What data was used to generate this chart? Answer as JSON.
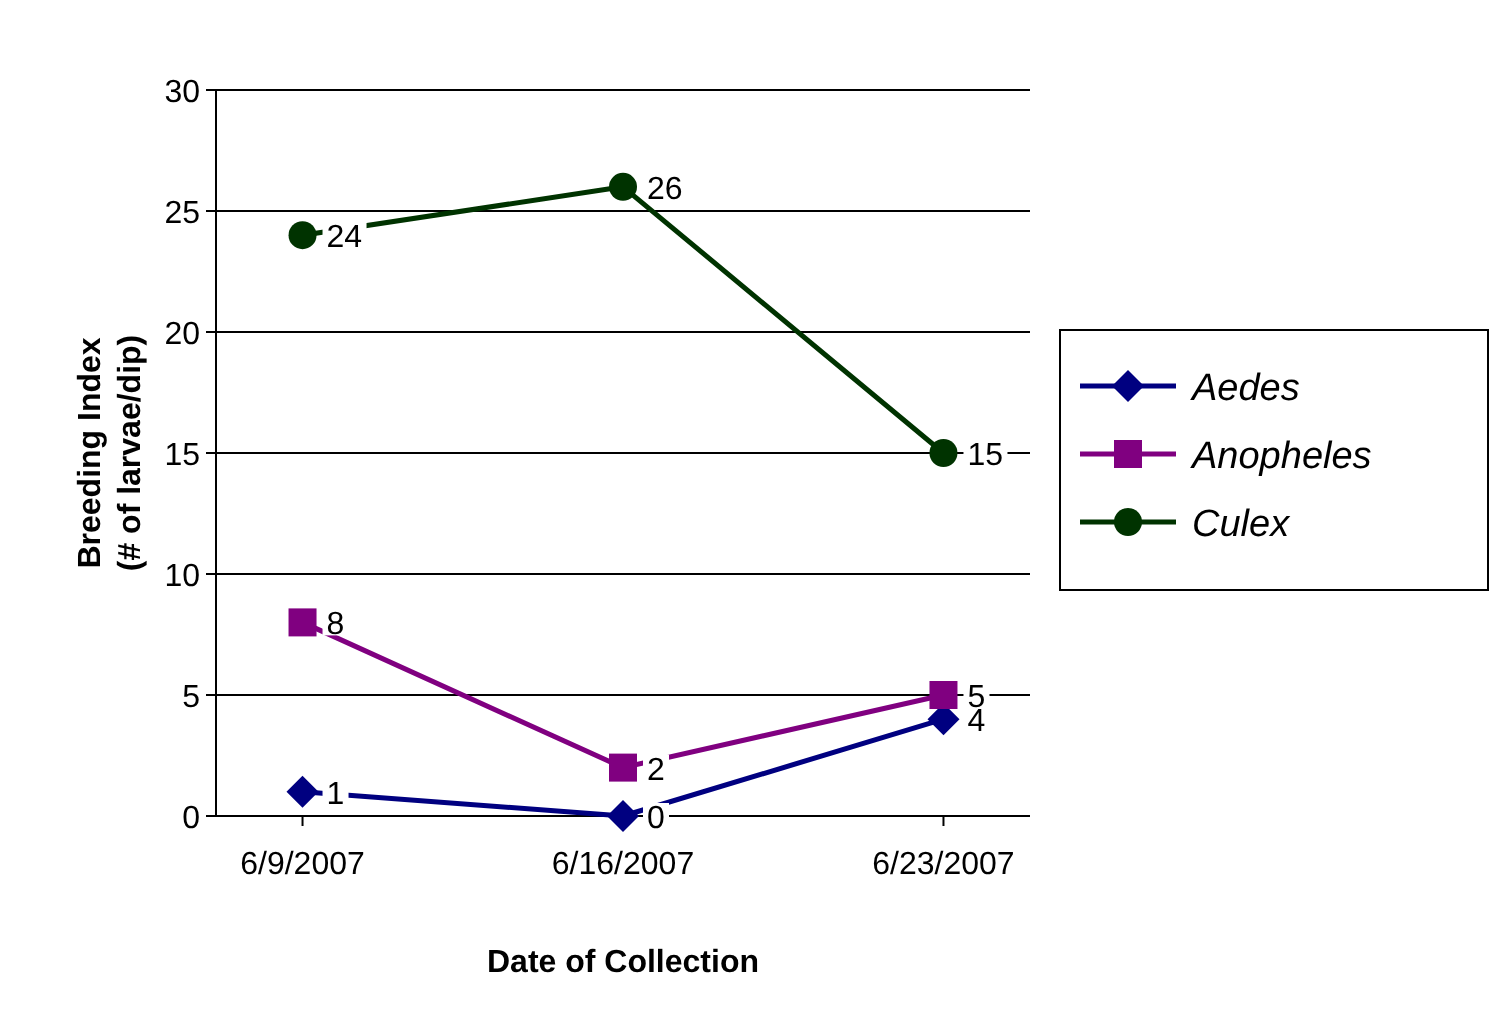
{
  "chart_data": {
    "type": "line",
    "xlabel": "Date of Collection",
    "ylabel": "Breeding Index\n(# of larvae/dip)",
    "categories": [
      "6/9/2007",
      "6/16/2007",
      "6/23/2007"
    ],
    "series": [
      {
        "name": "Aedes",
        "color": "#000080",
        "values": [
          1,
          0,
          4
        ],
        "marker": "diamond"
      },
      {
        "name": "Anopheles",
        "color": "#800080",
        "values": [
          8,
          2,
          5
        ],
        "marker": "square"
      },
      {
        "name": "Culex",
        "color": "#003300",
        "values": [
          24,
          26,
          15
        ],
        "marker": "circle"
      }
    ],
    "ylim": [
      0,
      30
    ],
    "yticks": [
      0,
      5,
      10,
      15,
      20,
      25,
      30
    ],
    "grid": "y",
    "legend": "right",
    "data_labels": true,
    "line_style": "solid"
  }
}
